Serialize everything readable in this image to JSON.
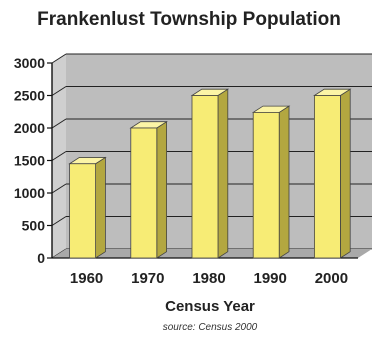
{
  "chart_data": {
    "type": "bar",
    "title": "Frankenlust Township Population",
    "xlabel": "Census Year",
    "ylabel": "",
    "categories": [
      "1960",
      "1970",
      "1980",
      "1990",
      "2000"
    ],
    "values": [
      1450,
      2000,
      2500,
      2240,
      2500
    ],
    "ylim": [
      0,
      3000
    ],
    "yticks": [
      0,
      500,
      1000,
      1500,
      2000,
      2500,
      3000
    ],
    "grid": true,
    "source_label": "source:",
    "source_value": "Census 2000"
  },
  "colors": {
    "bar_front": "#f7ec75",
    "bar_side": "#b3a740",
    "bar_top": "#fbf4a6",
    "wall": "#bdbdbd",
    "floor": "#a9a9a9",
    "grid": "#222222"
  }
}
